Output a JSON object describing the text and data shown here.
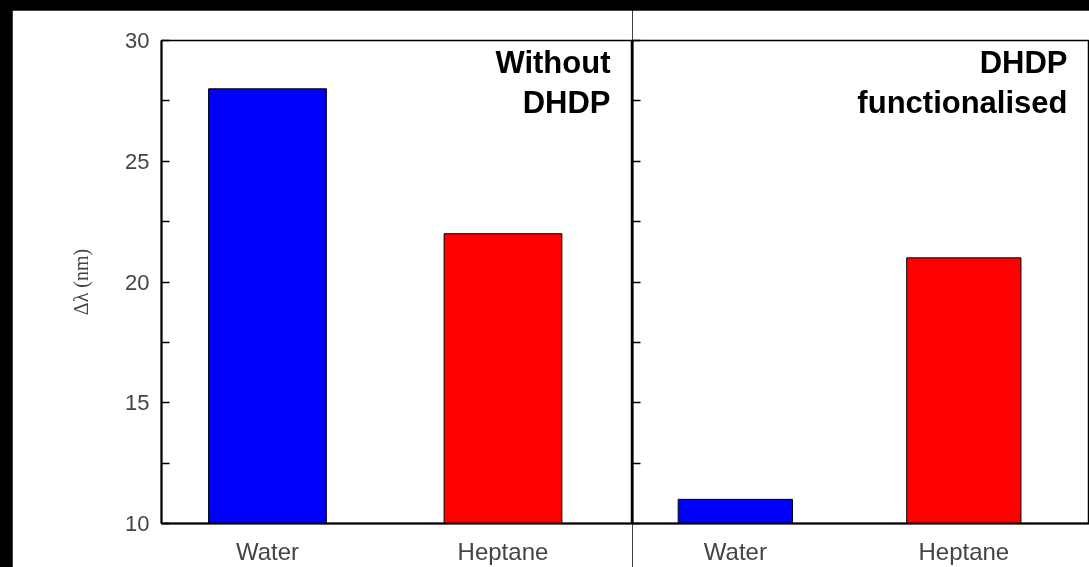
{
  "chart_data": [
    {
      "type": "bar",
      "title": "Without DHDP",
      "ylabel": "Δλ (nm)",
      "categories": [
        "Water",
        "Heptane"
      ],
      "values": [
        28,
        22
      ],
      "colors": [
        "#0000ff",
        "#ff0000"
      ],
      "ylim": [
        10,
        30
      ],
      "yticks": [
        10,
        {
          "value": 12.5,
          "label": null
        },
        15,
        {
          "value": 17.5,
          "label": null
        },
        20,
        {
          "value": 22.5,
          "label": null
        },
        25,
        {
          "value": 27.5,
          "label": null
        },
        30
      ]
    },
    {
      "type": "bar",
      "title": "DHDP functionalised",
      "categories": [
        "Water",
        "Heptane"
      ],
      "values": [
        11,
        21
      ],
      "colors": [
        "#0000ff",
        "#ff0000"
      ],
      "ylim": [
        10,
        30
      ],
      "yticks": [
        10,
        {
          "value": 12.5,
          "label": null
        },
        15,
        {
          "value": 17.5,
          "label": null
        },
        20,
        {
          "value": 22.5,
          "label": null
        },
        25,
        {
          "value": 27.5,
          "label": null
        },
        30
      ],
      "tick_labels": "x"
    }
  ]
}
